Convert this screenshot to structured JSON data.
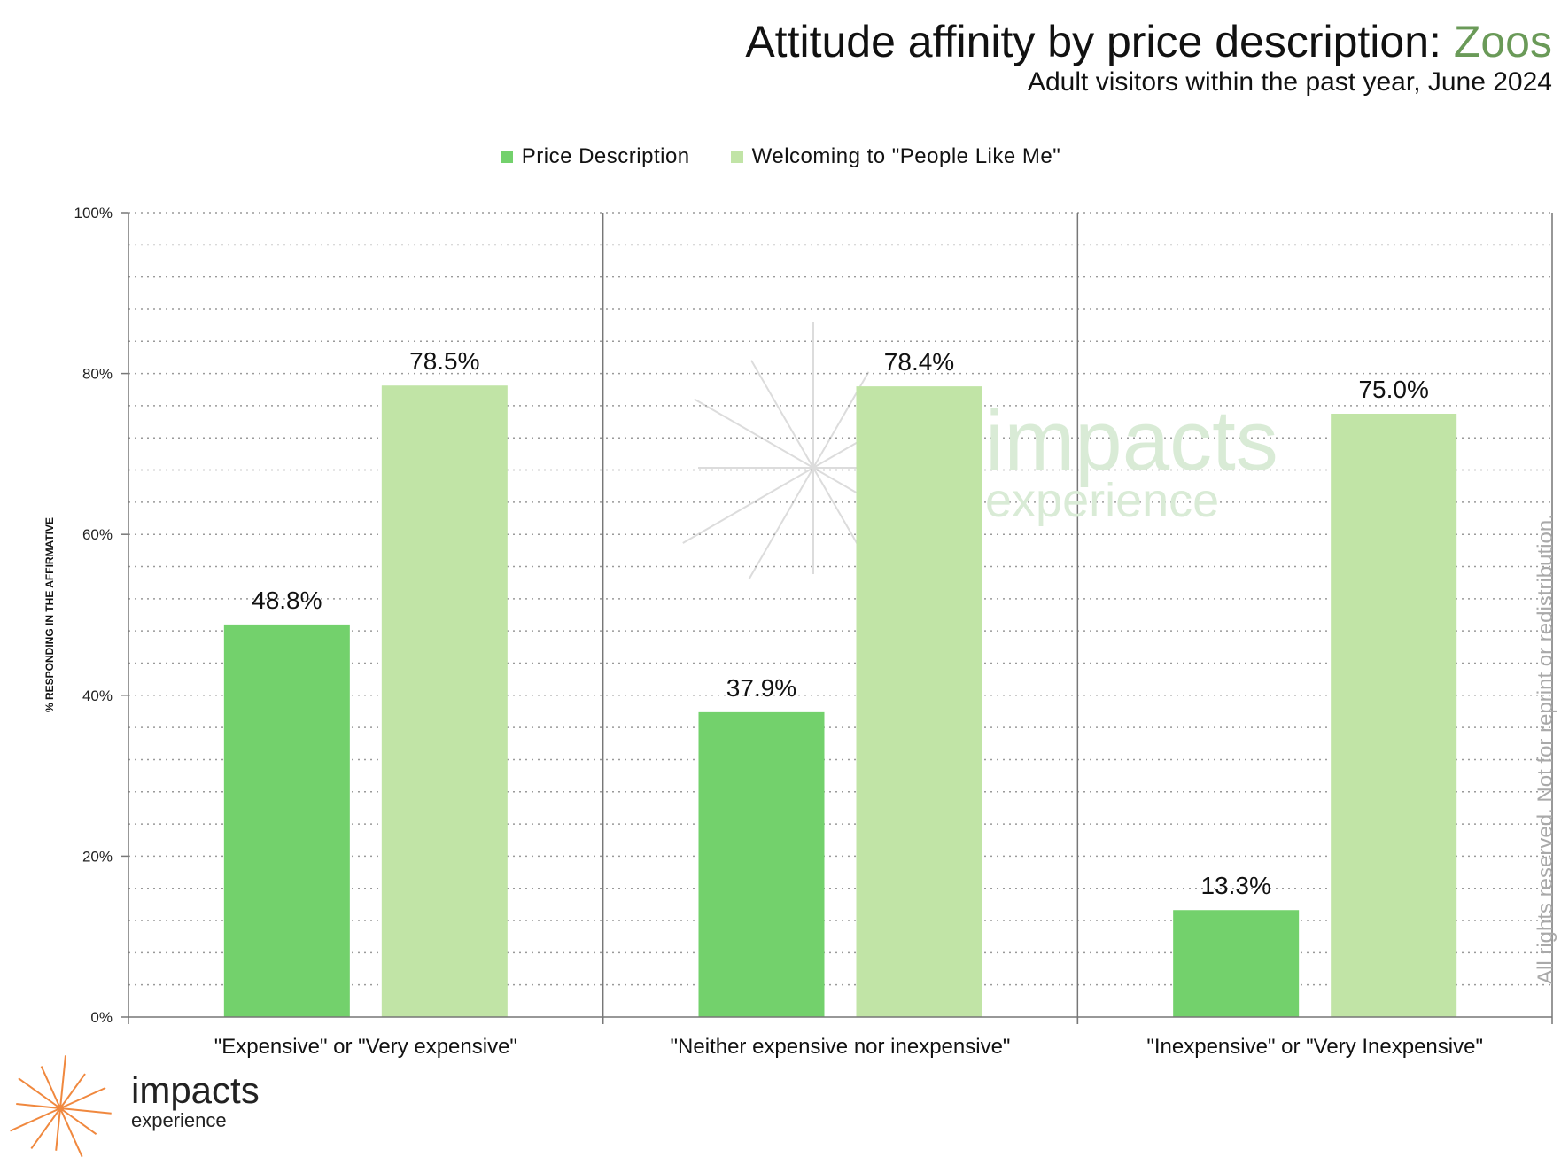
{
  "header": {
    "title": "Attitude affinity by price description: ",
    "title_highlight": "Zoos",
    "subtitle": "Adult visitors within the past year, June 2024"
  },
  "watermark": {
    "brand": "impacts",
    "brand_sub": "experience",
    "rights": "All rights reserved. Not for reprint or redistribution."
  },
  "logo": {
    "brand": "impacts",
    "brand_sub": "experience"
  },
  "colors": {
    "price": "#73d16c",
    "welcoming": "#c1e4a6",
    "highlight": "#6a9a58",
    "logo_orange": "#f0883e"
  },
  "chart_data": {
    "type": "bar",
    "title": "Attitude affinity by price description: Zoos",
    "subtitle": "Adult visitors within the past year, June 2024",
    "categories": [
      "\"Expensive\" or \"Very expensive\"",
      "\"Neither expensive nor inexpensive\"",
      "\"Inexpensive\" or \"Very Inexpensive\""
    ],
    "series": [
      {
        "name": "Price Description",
        "color": "#73d16c",
        "values": [
          48.8,
          37.9,
          13.3
        ],
        "labels": [
          "48.8%",
          "37.9%",
          "13.3%"
        ]
      },
      {
        "name": "Welcoming to \"People Like Me\"",
        "color": "#c1e4a6",
        "values": [
          78.5,
          78.4,
          75.0
        ],
        "labels": [
          "78.5%",
          "78.4%",
          "75.0%"
        ]
      }
    ],
    "ylabel": "% RESPONDING IN THE AFFIRMATIVE",
    "xlabel": "",
    "ylim": [
      0,
      100
    ],
    "yticks": [
      0,
      20,
      40,
      60,
      80,
      100
    ],
    "ytick_labels": [
      "0%",
      "20%",
      "40%",
      "60%",
      "80%",
      "100%"
    ],
    "minor_grid_step": 4,
    "grid": true,
    "legend": "top-center"
  }
}
